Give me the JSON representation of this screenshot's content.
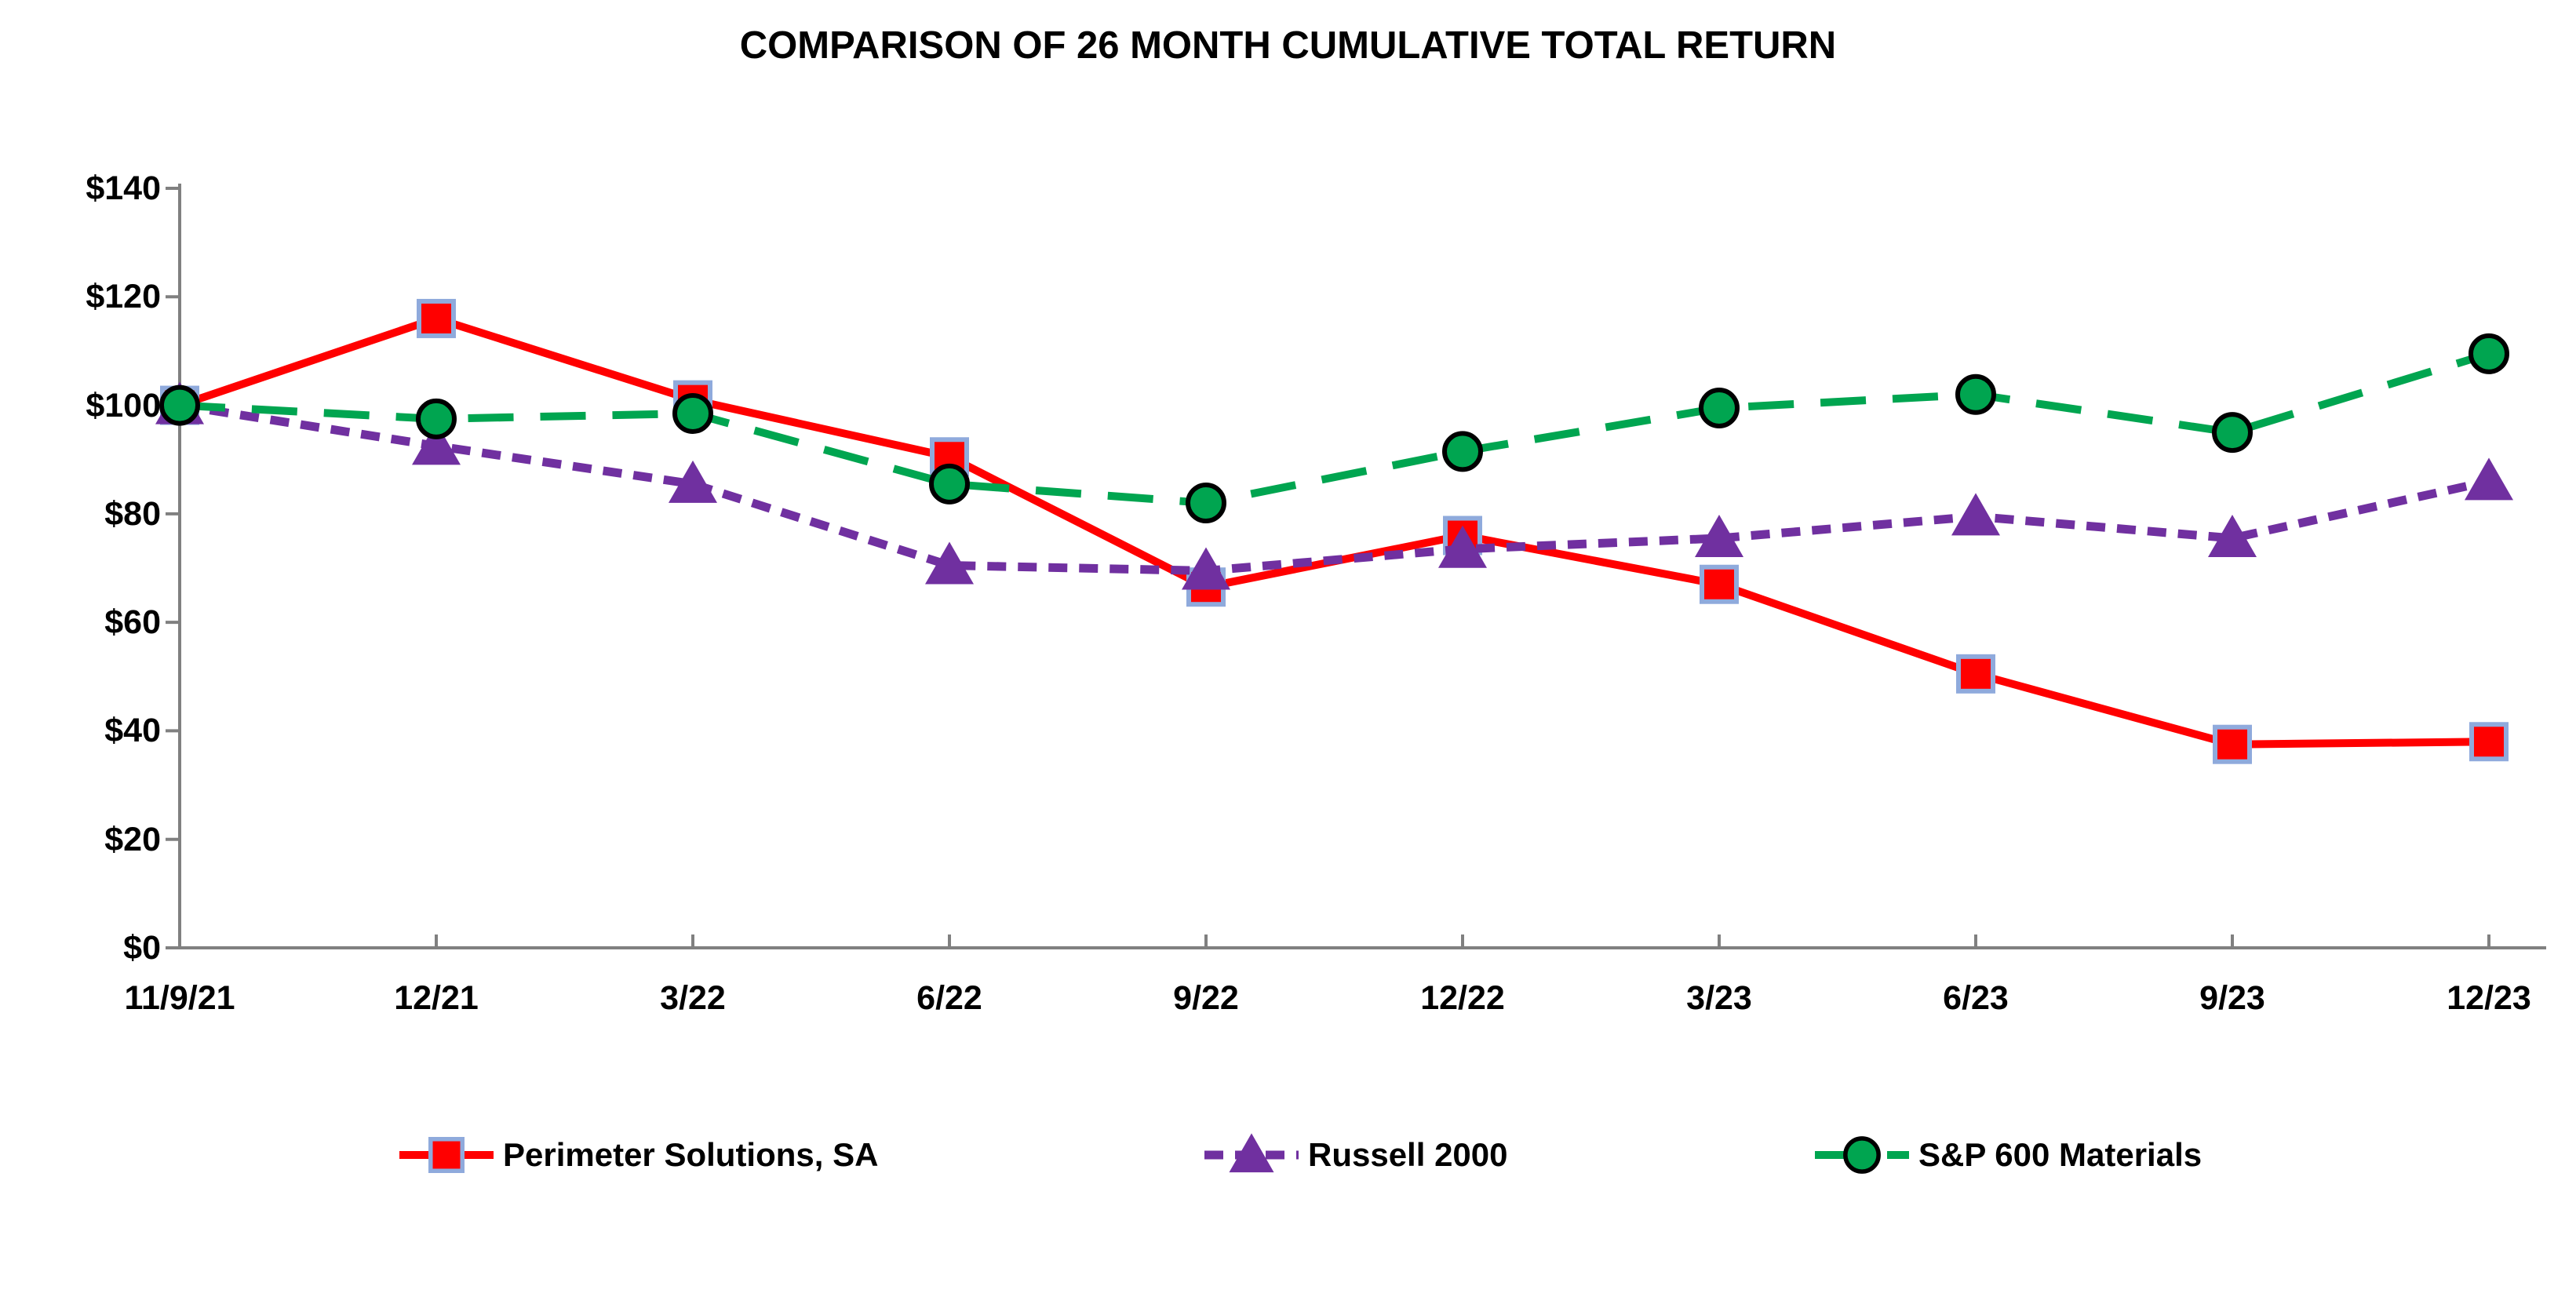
{
  "chart_data": {
    "type": "line",
    "title": "COMPARISON OF 26 MONTH CUMULATIVE TOTAL RETURN",
    "categories": [
      "11/9/21",
      "12/21",
      "3/22",
      "6/22",
      "9/22",
      "12/22",
      "3/23",
      "6/23",
      "9/23",
      "12/23"
    ],
    "series": [
      {
        "name": "Perimeter Solutions, SA",
        "color": "#FF0000",
        "marker": "square",
        "marker_fill": "#FF0000",
        "marker_stroke": "#8FAADC",
        "line_style": "solid",
        "values": [
          100,
          116,
          101,
          90.5,
          66.5,
          76,
          67,
          50.5,
          37.5,
          38
        ]
      },
      {
        "name": "Russell 2000",
        "color": "#7030A0",
        "marker": "triangle",
        "marker_fill": "#7030A0",
        "marker_stroke": "none",
        "line_style": "dashed",
        "values": [
          100,
          92.5,
          85.5,
          70.5,
          69.5,
          73.5,
          75.5,
          79.5,
          75.5,
          86
        ]
      },
      {
        "name": "S&P 600 Materials",
        "color": "#00A550",
        "marker": "circle",
        "marker_fill": "#00A550",
        "marker_stroke": "#000000",
        "line_style": "long-dash",
        "values": [
          100,
          97.5,
          98.5,
          85.5,
          82,
          91.5,
          99.5,
          102,
          95,
          109.5
        ]
      }
    ],
    "y_axis": {
      "min": 0,
      "max": 140,
      "step": 20,
      "tick_labels": [
        "$0",
        "$20",
        "$40",
        "$60",
        "$80",
        "$100",
        "$120",
        "$140"
      ]
    },
    "x_axis": {
      "tick_labels": [
        "11/9/21",
        "12/21",
        "3/22",
        "6/22",
        "9/22",
        "12/22",
        "3/23",
        "6/23",
        "9/23",
        "12/23"
      ]
    },
    "grid": false,
    "legend_position": "bottom",
    "axis_color": "#808080",
    "text_color": "#000000",
    "ylim": [
      0,
      140
    ]
  }
}
